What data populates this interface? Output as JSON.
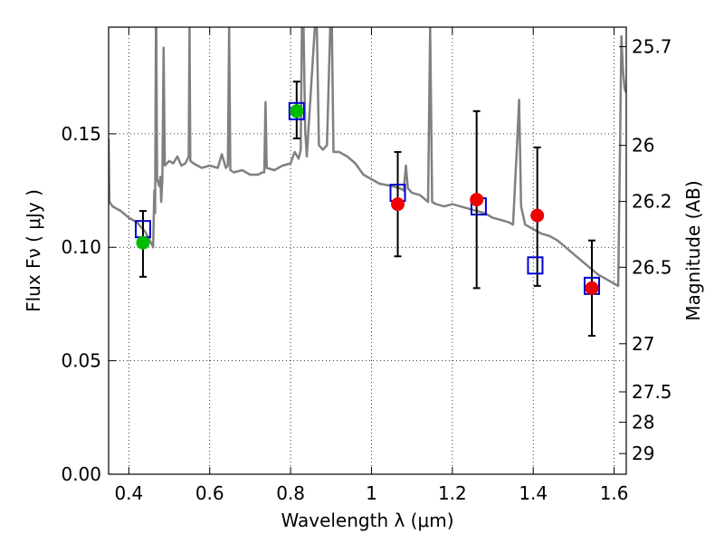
{
  "chart_data": {
    "type": "scatter",
    "xlabel": "Wavelength  λ (μm)",
    "ylabel": "Flux  Fν  ( μJy )",
    "y2label": "Magnitude (AB)",
    "xlim": [
      0.35,
      1.63
    ],
    "ylim": [
      0.0,
      0.197
    ],
    "x_ticks": [
      {
        "value": 0.4,
        "label": "0.4"
      },
      {
        "value": 0.6,
        "label": "0.6"
      },
      {
        "value": 0.8,
        "label": "0.8"
      },
      {
        "value": 1.0,
        "label": "1"
      },
      {
        "value": 1.2,
        "label": "1.2"
      },
      {
        "value": 1.4,
        "label": "1.4"
      },
      {
        "value": 1.6,
        "label": "1.6"
      }
    ],
    "y_ticks": [
      {
        "value": 0.0,
        "label": "0.00"
      },
      {
        "value": 0.05,
        "label": "0.05"
      },
      {
        "value": 0.1,
        "label": "0.10"
      },
      {
        "value": 0.15,
        "label": "0.15"
      }
    ],
    "y2_ticks": [
      {
        "flux": 0.1884,
        "label": "25.7"
      },
      {
        "flux": 0.1449,
        "label": "26"
      },
      {
        "flux": 0.1202,
        "label": "26.2"
      },
      {
        "flux": 0.0912,
        "label": "26.5"
      },
      {
        "flux": 0.0575,
        "label": "27"
      },
      {
        "flux": 0.0363,
        "label": "27.5"
      },
      {
        "flux": 0.0229,
        "label": "28"
      },
      {
        "flux": 0.0091,
        "label": "29"
      }
    ],
    "grid": true,
    "colors": {
      "model_line": "#808080",
      "observed_green": "#00bb00",
      "observed_red": "#ee0000",
      "model_photometry": "#0000cc",
      "errorbar": "#000000"
    },
    "series": [
      {
        "kind": "line",
        "points": [
          [
            0.35,
            0.148
          ],
          [
            0.352,
            0.12
          ],
          [
            0.36,
            0.118
          ],
          [
            0.38,
            0.116
          ],
          [
            0.4,
            0.113
          ],
          [
            0.42,
            0.111
          ],
          [
            0.44,
            0.107
          ],
          [
            0.455,
            0.102
          ],
          [
            0.46,
            0.1
          ],
          [
            0.463,
            0.125
          ],
          [
            0.465,
            0.115
          ],
          [
            0.467,
            0.197
          ],
          [
            0.468,
            0.197
          ],
          [
            0.47,
            0.13
          ],
          [
            0.475,
            0.127
          ],
          [
            0.478,
            0.131
          ],
          [
            0.48,
            0.12
          ],
          [
            0.483,
            0.13
          ],
          [
            0.486,
            0.188
          ],
          [
            0.489,
            0.136
          ],
          [
            0.5,
            0.138
          ],
          [
            0.51,
            0.137
          ],
          [
            0.52,
            0.14
          ],
          [
            0.53,
            0.136
          ],
          [
            0.54,
            0.137
          ],
          [
            0.548,
            0.14
          ],
          [
            0.55,
            0.197
          ],
          [
            0.552,
            0.138
          ],
          [
            0.56,
            0.137
          ],
          [
            0.58,
            0.135
          ],
          [
            0.6,
            0.136
          ],
          [
            0.62,
            0.135
          ],
          [
            0.63,
            0.141
          ],
          [
            0.64,
            0.135
          ],
          [
            0.645,
            0.136
          ],
          [
            0.648,
            0.197
          ],
          [
            0.651,
            0.134
          ],
          [
            0.66,
            0.133
          ],
          [
            0.68,
            0.134
          ],
          [
            0.7,
            0.132
          ],
          [
            0.72,
            0.132
          ],
          [
            0.73,
            0.133
          ],
          [
            0.735,
            0.133
          ],
          [
            0.738,
            0.164
          ],
          [
            0.741,
            0.135
          ],
          [
            0.76,
            0.134
          ],
          [
            0.78,
            0.136
          ],
          [
            0.8,
            0.137
          ],
          [
            0.81,
            0.142
          ],
          [
            0.82,
            0.139
          ],
          [
            0.825,
            0.143
          ],
          [
            0.828,
            0.197
          ],
          [
            0.832,
            0.197
          ],
          [
            0.836,
            0.152
          ],
          [
            0.84,
            0.14
          ],
          [
            0.86,
            0.197
          ],
          [
            0.865,
            0.197
          ],
          [
            0.87,
            0.145
          ],
          [
            0.88,
            0.143
          ],
          [
            0.89,
            0.145
          ],
          [
            0.898,
            0.197
          ],
          [
            0.902,
            0.197
          ],
          [
            0.906,
            0.142
          ],
          [
            0.92,
            0.142
          ],
          [
            0.94,
            0.14
          ],
          [
            0.96,
            0.137
          ],
          [
            0.98,
            0.132
          ],
          [
            1.0,
            0.13
          ],
          [
            1.02,
            0.128
          ],
          [
            1.05,
            0.127
          ],
          [
            1.07,
            0.126
          ],
          [
            1.08,
            0.125
          ],
          [
            1.085,
            0.136
          ],
          [
            1.09,
            0.126
          ],
          [
            1.1,
            0.124
          ],
          [
            1.12,
            0.123
          ],
          [
            1.14,
            0.12
          ],
          [
            1.145,
            0.197
          ],
          [
            1.15,
            0.12
          ],
          [
            1.16,
            0.119
          ],
          [
            1.18,
            0.118
          ],
          [
            1.2,
            0.119
          ],
          [
            1.22,
            0.118
          ],
          [
            1.24,
            0.117
          ],
          [
            1.26,
            0.116
          ],
          [
            1.28,
            0.115
          ],
          [
            1.3,
            0.113
          ],
          [
            1.32,
            0.112
          ],
          [
            1.34,
            0.111
          ],
          [
            1.35,
            0.11
          ],
          [
            1.36,
            0.145
          ],
          [
            1.365,
            0.165
          ],
          [
            1.37,
            0.118
          ],
          [
            1.38,
            0.11
          ],
          [
            1.39,
            0.109
          ],
          [
            1.4,
            0.108
          ],
          [
            1.42,
            0.106
          ],
          [
            1.44,
            0.105
          ],
          [
            1.46,
            0.103
          ],
          [
            1.48,
            0.1
          ],
          [
            1.5,
            0.097
          ],
          [
            1.52,
            0.094
          ],
          [
            1.54,
            0.091
          ],
          [
            1.56,
            0.088
          ],
          [
            1.58,
            0.086
          ],
          [
            1.6,
            0.084
          ],
          [
            1.61,
            0.083
          ],
          [
            1.615,
            0.15
          ],
          [
            1.618,
            0.193
          ],
          [
            1.622,
            0.178
          ],
          [
            1.626,
            0.17
          ],
          [
            1.63,
            0.168
          ]
        ]
      },
      {
        "kind": "scatter",
        "marker": "circle",
        "color": "green",
        "points": [
          {
            "x": 0.435,
            "y": 0.102,
            "err_low": 0.015,
            "err_high": 0.014
          },
          {
            "x": 0.815,
            "y": 0.16,
            "err_low": 0.012,
            "err_high": 0.013
          }
        ]
      },
      {
        "kind": "scatter",
        "marker": "circle",
        "color": "red",
        "points": [
          {
            "x": 1.065,
            "y": 0.119,
            "err_low": 0.023,
            "err_high": 0.023
          },
          {
            "x": 1.26,
            "y": 0.121,
            "err_low": 0.039,
            "err_high": 0.039
          },
          {
            "x": 1.41,
            "y": 0.114,
            "err_low": 0.031,
            "err_high": 0.03
          },
          {
            "x": 1.545,
            "y": 0.082,
            "err_low": 0.021,
            "err_high": 0.021
          }
        ]
      },
      {
        "kind": "scatter",
        "marker": "square",
        "color": "blue",
        "points": [
          {
            "x": 0.435,
            "y": 0.108
          },
          {
            "x": 0.815,
            "y": 0.16
          },
          {
            "x": 1.065,
            "y": 0.124
          },
          {
            "x": 1.265,
            "y": 0.118
          },
          {
            "x": 1.405,
            "y": 0.092
          },
          {
            "x": 1.545,
            "y": 0.083
          }
        ]
      }
    ]
  }
}
